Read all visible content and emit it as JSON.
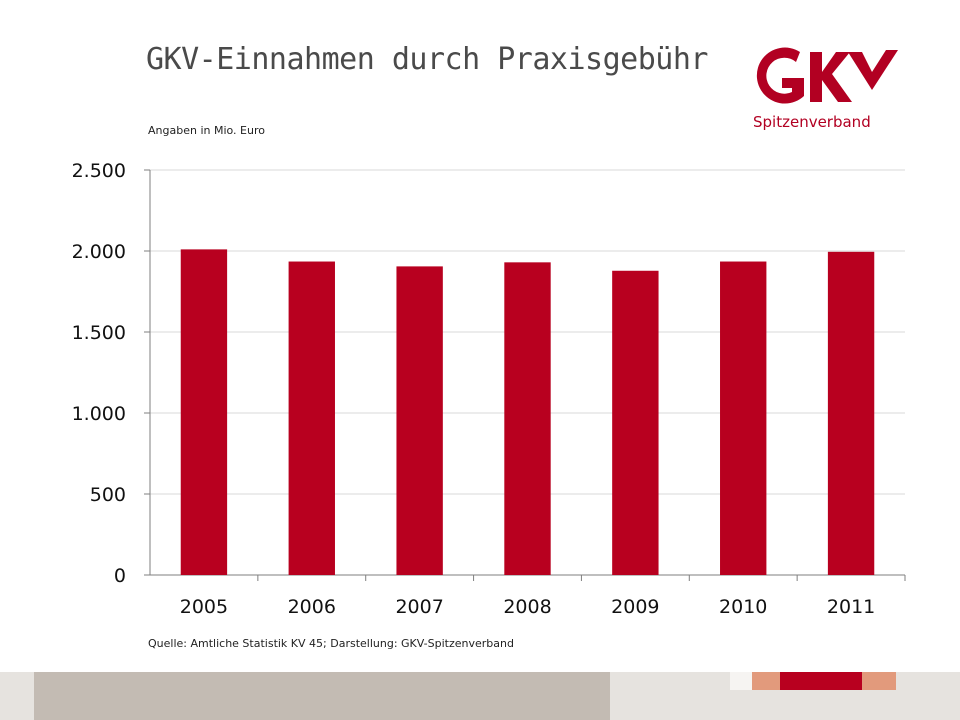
{
  "title": "GKV-Einnahmen durch Praxisgebühr",
  "unit_note": "Angaben in Mio. Euro",
  "source_note": "Quelle: Amtliche Statistik KV 45; Darstellung: GKV-Spitzenverband",
  "logo": {
    "mark": "GKV",
    "subtitle": "Spitzenverband"
  },
  "colors": {
    "bar": "#b8001f",
    "brand": "#b20022",
    "grid": "#d9d9d9",
    "axis": "#7f7f7f"
  },
  "chart_data": {
    "type": "bar",
    "categories": [
      "2005",
      "2006",
      "2007",
      "2008",
      "2009",
      "2010",
      "2011"
    ],
    "values": [
      2010,
      1935,
      1905,
      1930,
      1878,
      1935,
      1995
    ],
    "ylim": [
      0,
      2500
    ],
    "yticks": [
      0,
      500,
      1000,
      1500,
      2000,
      2500
    ],
    "ytick_labels": [
      "0",
      "500",
      "1.000",
      "1.500",
      "2.000",
      "2.500"
    ],
    "grid": true
  }
}
